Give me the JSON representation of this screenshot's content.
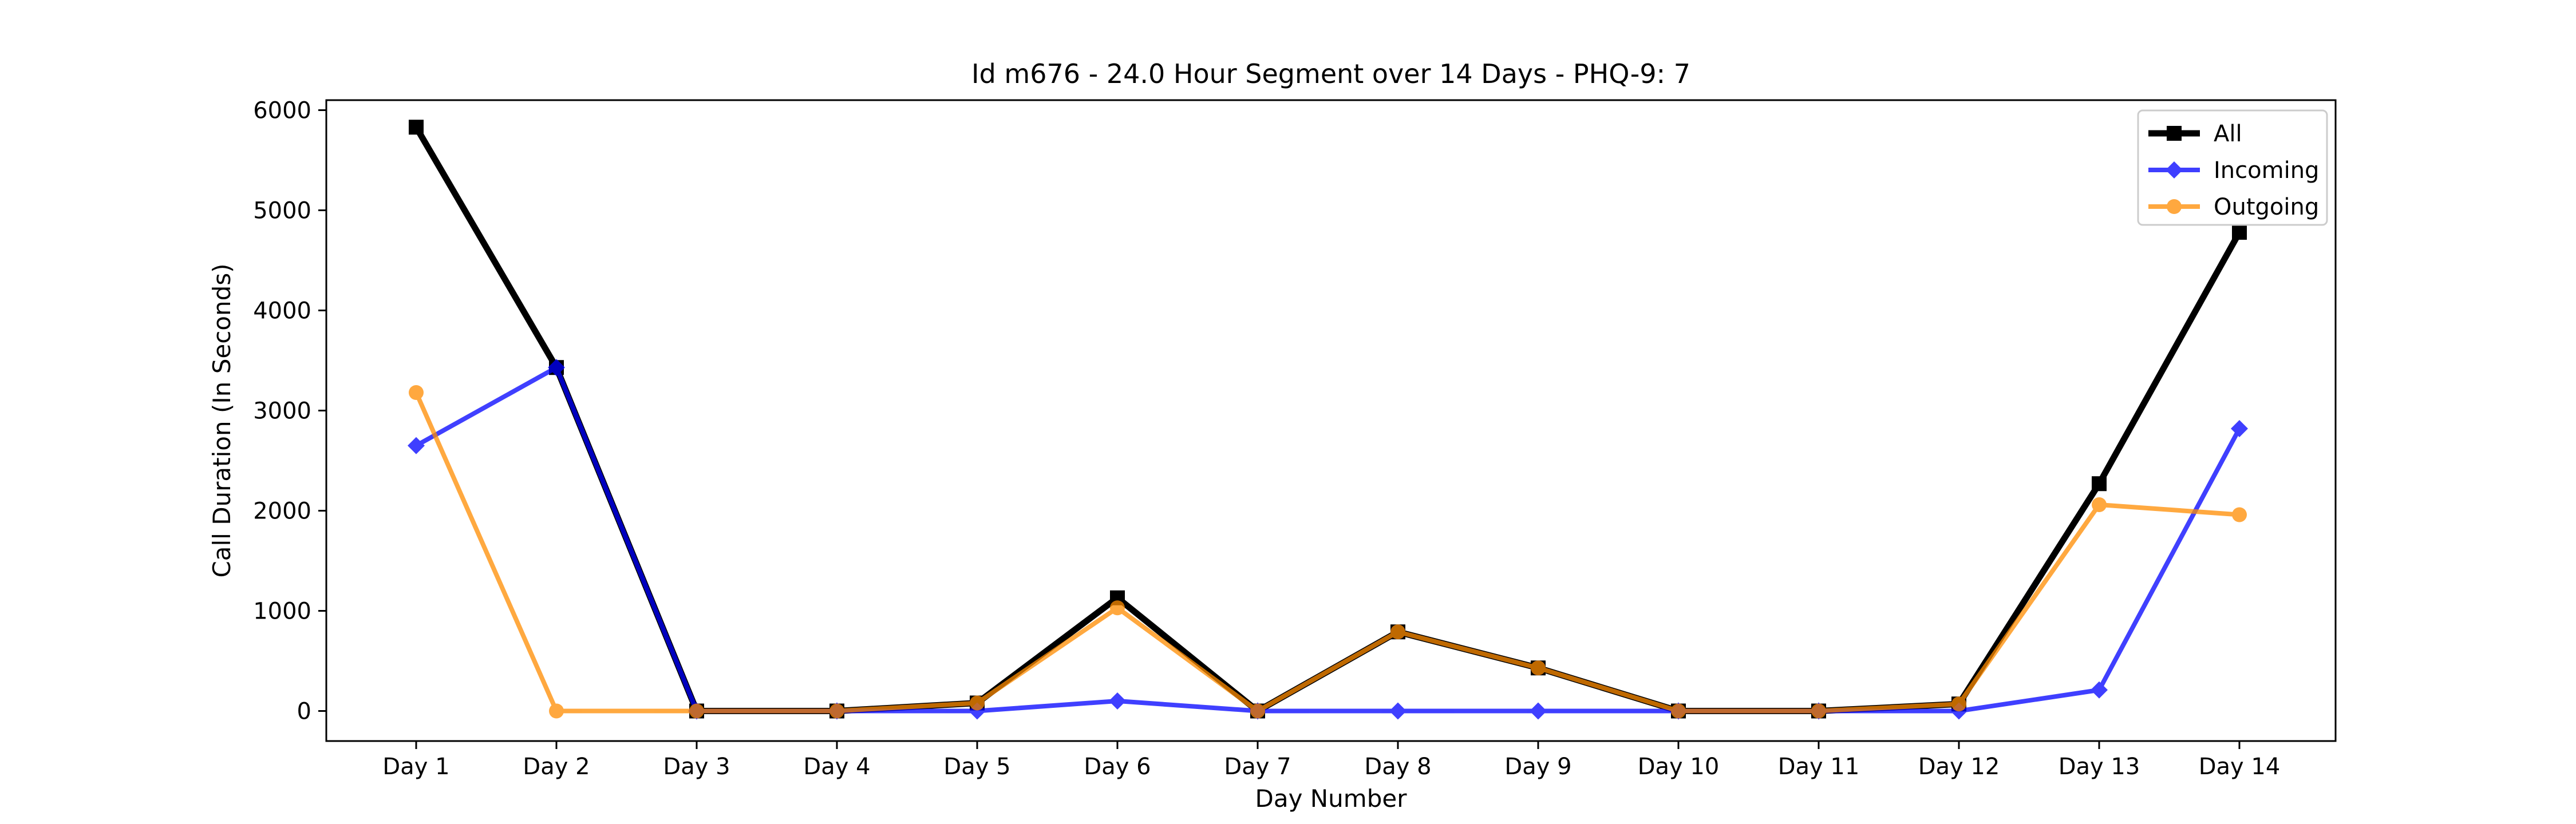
{
  "chart_data": {
    "type": "line",
    "title": "Id m676 - 24.0 Hour Segment over 14 Days - PHQ-9: 7",
    "xlabel": "Day Number",
    "ylabel": "Call Duration (In Seconds)",
    "categories": [
      "Day 1",
      "Day 2",
      "Day 3",
      "Day 4",
      "Day 5",
      "Day 6",
      "Day 7",
      "Day 8",
      "Day 9",
      "Day 10",
      "Day 11",
      "Day 12",
      "Day 13",
      "Day 14"
    ],
    "ylim": [
      -300,
      6100
    ],
    "yticks": [
      0,
      1000,
      2000,
      3000,
      4000,
      5000,
      6000
    ],
    "grid": false,
    "legend_position": "top-right",
    "series": [
      {
        "name": "All",
        "color": "#000000",
        "marker": "square",
        "values": [
          5830,
          3430,
          0,
          0,
          80,
          1130,
          0,
          790,
          430,
          0,
          0,
          70,
          2270,
          4780
        ]
      },
      {
        "name": "Incoming",
        "color": "#0000ff",
        "marker": "diamond",
        "values": [
          2650,
          3430,
          0,
          0,
          0,
          100,
          0,
          0,
          0,
          0,
          0,
          0,
          210,
          2820
        ]
      },
      {
        "name": "Outgoing",
        "color": "#ff8c00",
        "marker": "circle",
        "values": [
          3180,
          0,
          0,
          0,
          80,
          1030,
          0,
          790,
          430,
          0,
          0,
          70,
          2060,
          1960
        ]
      }
    ]
  }
}
